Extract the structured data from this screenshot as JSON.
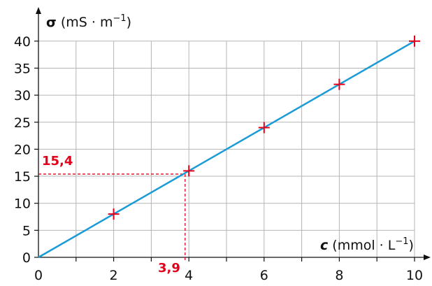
{
  "chart_data": {
    "type": "scatter",
    "title": "",
    "xlabel": {
      "symbol": "c",
      "unit_open": " (mmol · L",
      "unit_sup": "−1",
      "unit_close": ")"
    },
    "ylabel": {
      "symbol": "σ",
      "unit_open": " (mS · m",
      "unit_sup": "−1",
      "unit_close": ")"
    },
    "xlim": [
      0,
      10.3
    ],
    "ylim": [
      0,
      41.5
    ],
    "x_ticks": [
      "0",
      "2",
      "4",
      "6",
      "8",
      "10"
    ],
    "y_ticks": [
      "0",
      "5",
      "10",
      "15",
      "20",
      "25",
      "30",
      "35",
      "40"
    ],
    "grid": true,
    "points": [
      {
        "x": 2,
        "y": 8
      },
      {
        "x": 4,
        "y": 16
      },
      {
        "x": 6,
        "y": 24
      },
      {
        "x": 8,
        "y": 32
      },
      {
        "x": 10,
        "y": 40
      }
    ],
    "fit_line": {
      "x0": 0,
      "y0": 0,
      "x1": 10,
      "y1": 40
    },
    "annotation": {
      "x_value": 3.9,
      "y_value": 15.4,
      "x_label": "3,9",
      "y_label": "15,4"
    },
    "colors": {
      "line": "#1a9bd7",
      "marker": "#e3001b",
      "grid": "#b5b5b5",
      "axis": "#111111"
    }
  }
}
